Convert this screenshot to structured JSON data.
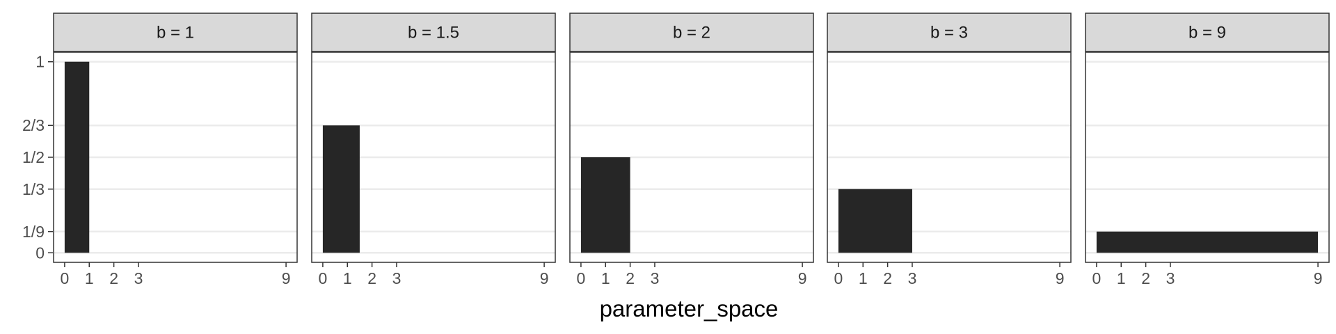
{
  "chart_data": {
    "type": "bar",
    "layout": "facets",
    "xlabel": "parameter_space",
    "ylabel": "",
    "xlim": [
      -0.45,
      9.45
    ],
    "ylim": [
      -0.05,
      1.05
    ],
    "x_ticks": [
      {
        "value": 0,
        "label": "0"
      },
      {
        "value": 1,
        "label": "1"
      },
      {
        "value": 2,
        "label": "2"
      },
      {
        "value": 3,
        "label": "3"
      },
      {
        "value": 9,
        "label": "9"
      }
    ],
    "y_ticks": [
      {
        "value": 0,
        "label": "0"
      },
      {
        "value": 0.1111,
        "label": "1/9"
      },
      {
        "value": 0.3333,
        "label": "1/3"
      },
      {
        "value": 0.5,
        "label": "1/2"
      },
      {
        "value": 0.6667,
        "label": "2/3"
      },
      {
        "value": 1,
        "label": "1"
      }
    ],
    "grid": true,
    "bar_color": "#262626",
    "facets": [
      {
        "label": "b = 1",
        "bar": {
          "xmin": 0,
          "xmax": 1,
          "height": 1
        }
      },
      {
        "label": "b = 1.5",
        "bar": {
          "xmin": 0,
          "xmax": 1.5,
          "height": 0.6667
        }
      },
      {
        "label": "b = 2",
        "bar": {
          "xmin": 0,
          "xmax": 2,
          "height": 0.5
        }
      },
      {
        "label": "b = 3",
        "bar": {
          "xmin": 0,
          "xmax": 3,
          "height": 0.3333
        }
      },
      {
        "label": "b = 9",
        "bar": {
          "xmin": 0,
          "xmax": 9,
          "height": 0.1111
        }
      }
    ]
  }
}
